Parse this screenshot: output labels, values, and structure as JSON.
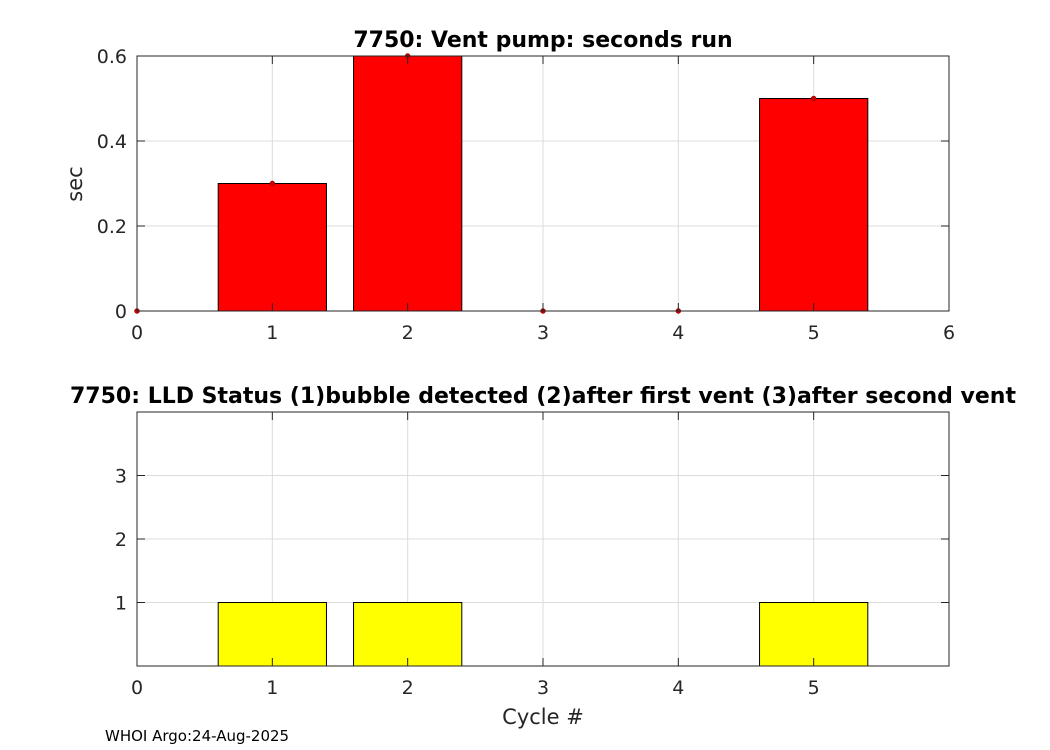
{
  "footer": "WHOI Argo:24-Aug-2025",
  "chart_data": [
    {
      "type": "bar",
      "title": "7750: Vent pump: seconds run",
      "xlabel": "",
      "ylabel": "sec",
      "x": [
        0,
        1,
        2,
        3,
        4,
        5
      ],
      "values": [
        0,
        0.3,
        0.6,
        0,
        0,
        0.5
      ],
      "xlim": [
        0,
        6
      ],
      "ylim": [
        0,
        0.6
      ],
      "xticks": [
        0,
        1,
        2,
        3,
        4,
        5,
        6
      ],
      "yticks": [
        0,
        0.2,
        0.4,
        0.6
      ],
      "grid": true,
      "bar_color": "#ff0000",
      "marker_color": "#cc0000"
    },
    {
      "type": "bar",
      "title": "7750: LLD Status   (1)bubble detected   (2)after first vent  (3)after second vent",
      "xlabel": "Cycle #",
      "ylabel": "",
      "x": [
        1,
        2,
        5
      ],
      "values": [
        1,
        1,
        1
      ],
      "xlim": [
        0,
        6
      ],
      "ylim": [
        0,
        4
      ],
      "xticks": [
        0,
        1,
        2,
        3,
        4,
        5
      ],
      "yticks": [
        1,
        2,
        3
      ],
      "grid": true,
      "bar_color": "#ffff00"
    }
  ]
}
